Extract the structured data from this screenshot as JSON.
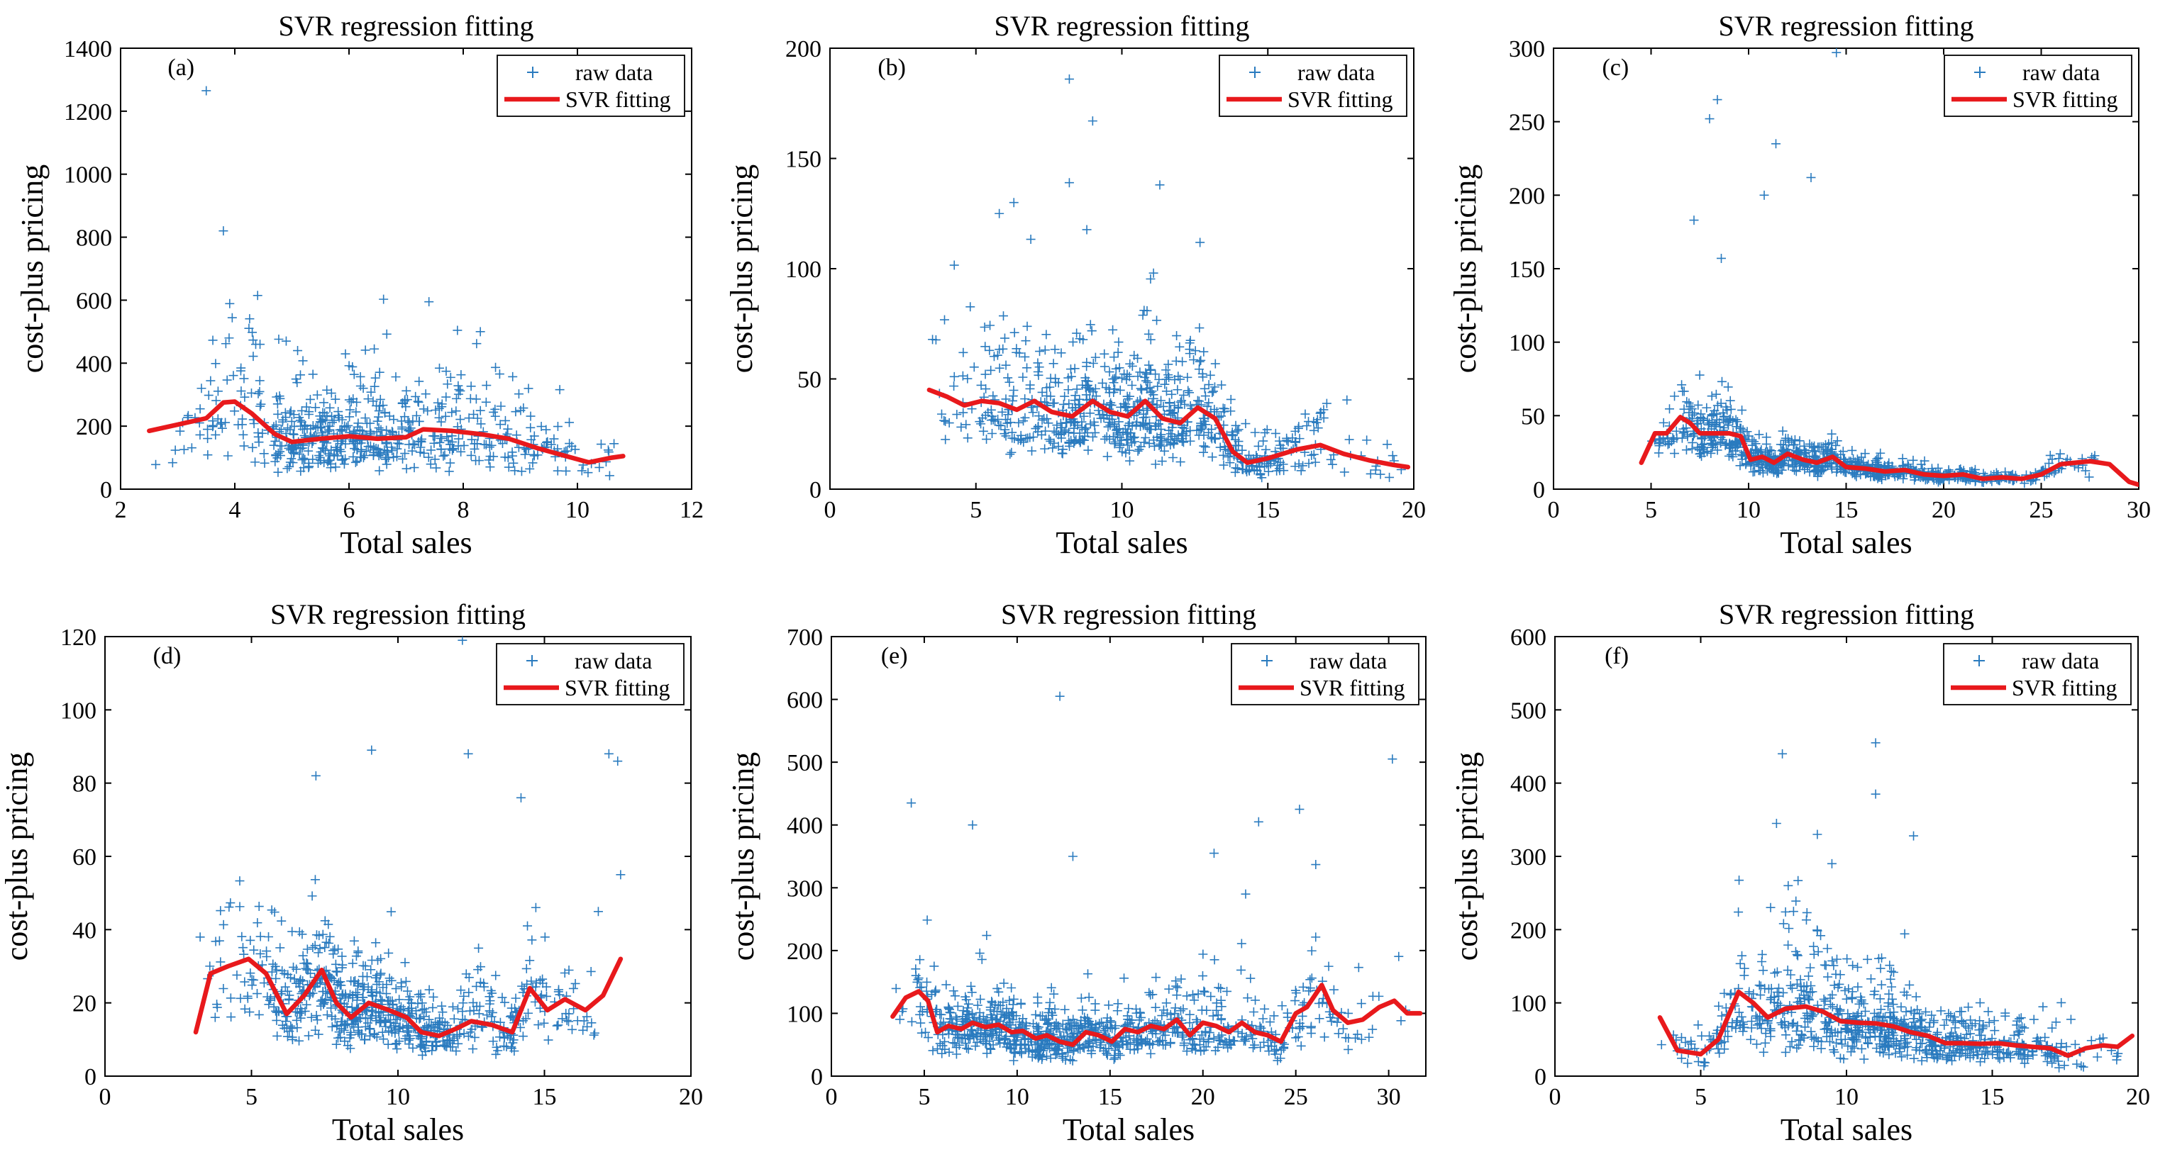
{
  "colors": {
    "raw": "#2a7bbf",
    "fit": "#e8191c",
    "axis": "#000000"
  },
  "chart_data": [
    {
      "tag": "(a)",
      "type": "scatter",
      "title": "SVR regression fitting",
      "xlabel": "Total sales",
      "ylabel": "cost-plus pricing",
      "xlim": [
        2,
        12
      ],
      "ylim": [
        0,
        1400
      ],
      "xticks": [
        2,
        4,
        6,
        8,
        10,
        12
      ],
      "yticks": [
        0,
        200,
        400,
        600,
        800,
        1000,
        1200,
        1400
      ],
      "legend": [
        "raw data",
        "SVR fitting"
      ],
      "scatter": {
        "n": 600,
        "xmin": 2.6,
        "xmax": 10.8,
        "xmode": 5.5,
        "ymult": 1.5,
        "seed": 11,
        "outliers": [
          [
            3.5,
            1265
          ],
          [
            3.8,
            820
          ],
          [
            4.4,
            615
          ],
          [
            7.4,
            595
          ],
          [
            8.3,
            500
          ],
          [
            3.9,
            480
          ],
          [
            4.9,
            470
          ],
          [
            5.1,
            440
          ]
        ]
      },
      "fit": [
        [
          2.5,
          185
        ],
        [
          3.0,
          205
        ],
        [
          3.5,
          225
        ],
        [
          3.8,
          275
        ],
        [
          4.0,
          278
        ],
        [
          4.3,
          240
        ],
        [
          4.7,
          175
        ],
        [
          5.0,
          150
        ],
        [
          5.5,
          160
        ],
        [
          6.0,
          168
        ],
        [
          6.5,
          160
        ],
        [
          7.0,
          165
        ],
        [
          7.3,
          190
        ],
        [
          7.8,
          185
        ],
        [
          8.3,
          175
        ],
        [
          8.8,
          160
        ],
        [
          9.3,
          130
        ],
        [
          9.8,
          105
        ],
        [
          10.2,
          85
        ],
        [
          10.6,
          100
        ],
        [
          10.8,
          105
        ]
      ]
    },
    {
      "tag": "(b)",
      "type": "scatter",
      "title": "SVR regression fitting",
      "xlabel": "Total sales",
      "ylabel": "cost-plus pricing",
      "xlim": [
        0,
        20
      ],
      "ylim": [
        0,
        200
      ],
      "xticks": [
        0,
        5,
        10,
        15,
        20
      ],
      "yticks": [
        0,
        50,
        100,
        150,
        200
      ],
      "legend": [
        "raw data",
        "SVR fitting"
      ],
      "scatter": {
        "n": 750,
        "xmin": 3.3,
        "xmax": 19.8,
        "xmode": 9.5,
        "ymult": 1.3,
        "seed": 23,
        "outliers": [
          [
            8.2,
            186
          ],
          [
            9.0,
            167
          ],
          [
            11.3,
            138
          ],
          [
            8.2,
            139
          ],
          [
            6.3,
            130
          ],
          [
            5.8,
            125
          ]
        ]
      },
      "fit": [
        [
          3.4,
          45
        ],
        [
          4.0,
          42
        ],
        [
          4.6,
          38
        ],
        [
          5.2,
          40
        ],
        [
          5.8,
          39
        ],
        [
          6.4,
          36
        ],
        [
          7.0,
          40
        ],
        [
          7.6,
          35
        ],
        [
          8.3,
          33
        ],
        [
          9.0,
          40
        ],
        [
          9.6,
          35
        ],
        [
          10.2,
          33
        ],
        [
          10.8,
          40
        ],
        [
          11.4,
          32
        ],
        [
          12.0,
          30
        ],
        [
          12.6,
          37
        ],
        [
          13.2,
          32
        ],
        [
          13.8,
          17
        ],
        [
          14.3,
          12
        ],
        [
          15.0,
          14
        ],
        [
          16.0,
          18
        ],
        [
          16.8,
          20
        ],
        [
          17.6,
          16
        ],
        [
          18.5,
          13
        ],
        [
          19.3,
          11
        ],
        [
          19.8,
          10
        ]
      ]
    },
    {
      "tag": "(c)",
      "type": "scatter",
      "title": "SVR regression fitting",
      "xlabel": "Total sales",
      "ylabel": "cost-plus pricing",
      "xlim": [
        0,
        30
      ],
      "ylim": [
        0,
        300
      ],
      "xticks": [
        0,
        5,
        10,
        15,
        20,
        25,
        30
      ],
      "yticks": [
        0,
        50,
        100,
        150,
        200,
        250,
        300
      ],
      "legend": [
        "raw data",
        "SVR fitting"
      ],
      "scatter": {
        "n": 800,
        "xmin": 4.5,
        "xmax": 29.5,
        "xmode": 8.5,
        "ymult": 0.9,
        "seed": 37,
        "outliers": [
          [
            14.5,
            297
          ],
          [
            8.4,
            265
          ],
          [
            8.0,
            252
          ],
          [
            11.4,
            235
          ],
          [
            13.2,
            212
          ],
          [
            10.8,
            200
          ],
          [
            7.2,
            183
          ],
          [
            8.6,
            157
          ]
        ]
      },
      "fit": [
        [
          4.5,
          18
        ],
        [
          5.2,
          38
        ],
        [
          5.8,
          38
        ],
        [
          6.5,
          49
        ],
        [
          7.0,
          45
        ],
        [
          7.5,
          38
        ],
        [
          8.2,
          38
        ],
        [
          9.0,
          38
        ],
        [
          9.6,
          36
        ],
        [
          10.1,
          20
        ],
        [
          10.7,
          22
        ],
        [
          11.3,
          18
        ],
        [
          12.0,
          24
        ],
        [
          12.8,
          20
        ],
        [
          13.5,
          18
        ],
        [
          14.3,
          22
        ],
        [
          15.0,
          15
        ],
        [
          16.0,
          14
        ],
        [
          17.0,
          12
        ],
        [
          18.0,
          13
        ],
        [
          19.0,
          10
        ],
        [
          20.0,
          9
        ],
        [
          21.0,
          10
        ],
        [
          22.0,
          7
        ],
        [
          23.0,
          8
        ],
        [
          24.0,
          7
        ],
        [
          25.0,
          10
        ],
        [
          26.0,
          17
        ],
        [
          27.5,
          19
        ],
        [
          28.5,
          17
        ],
        [
          29.5,
          5
        ],
        [
          30.0,
          3
        ]
      ]
    },
    {
      "tag": "(d)",
      "type": "scatter",
      "title": "SVR regression fitting",
      "xlabel": "Total sales",
      "ylabel": "cost-plus pricing",
      "xlim": [
        0,
        20
      ],
      "ylim": [
        0,
        120
      ],
      "xticks": [
        0,
        5,
        10,
        15,
        20
      ],
      "yticks": [
        0,
        20,
        40,
        60,
        80,
        100,
        120
      ],
      "legend": [
        "raw data",
        "SVR fitting"
      ],
      "scatter": {
        "n": 700,
        "xmin": 3.0,
        "xmax": 17.5,
        "xmode": 8.0,
        "ymult": 1.1,
        "seed": 51,
        "outliers": [
          [
            12.2,
            119
          ],
          [
            9.1,
            89
          ],
          [
            12.4,
            88
          ],
          [
            17.2,
            88
          ],
          [
            17.5,
            86
          ],
          [
            7.2,
            82
          ],
          [
            14.2,
            76
          ],
          [
            17.6,
            55
          ]
        ]
      },
      "fit": [
        [
          3.1,
          12
        ],
        [
          3.6,
          28
        ],
        [
          4.2,
          30
        ],
        [
          4.9,
          32
        ],
        [
          5.5,
          28
        ],
        [
          6.2,
          17
        ],
        [
          6.8,
          22
        ],
        [
          7.4,
          29
        ],
        [
          7.9,
          20
        ],
        [
          8.4,
          16
        ],
        [
          9.0,
          20
        ],
        [
          9.7,
          18
        ],
        [
          10.3,
          16
        ],
        [
          10.8,
          12
        ],
        [
          11.4,
          11
        ],
        [
          12.0,
          13
        ],
        [
          12.5,
          15
        ],
        [
          13.2,
          14
        ],
        [
          13.9,
          12
        ],
        [
          14.5,
          24
        ],
        [
          15.1,
          18
        ],
        [
          15.7,
          21
        ],
        [
          16.4,
          18
        ],
        [
          17.0,
          22
        ],
        [
          17.6,
          32
        ]
      ]
    },
    {
      "tag": "(e)",
      "type": "scatter",
      "title": "SVR regression fitting",
      "xlabel": "Total sales",
      "ylabel": "cost-plus pricing",
      "xlim": [
        0,
        32
      ],
      "ylim": [
        0,
        700
      ],
      "xticks": [
        0,
        5,
        10,
        15,
        20,
        25,
        30
      ],
      "yticks": [
        0,
        100,
        200,
        300,
        400,
        500,
        600,
        700
      ],
      "legend": [
        "raw data",
        "SVR fitting"
      ],
      "scatter": {
        "n": 850,
        "xmin": 3.3,
        "xmax": 31.5,
        "xmode": 8.5,
        "ymult": 1.2,
        "seed": 67,
        "outliers": [
          [
            12.3,
            605
          ],
          [
            30.2,
            505
          ],
          [
            4.3,
            435
          ],
          [
            25.2,
            425
          ],
          [
            7.6,
            400
          ],
          [
            23.0,
            405
          ],
          [
            20.6,
            355
          ],
          [
            13.0,
            350
          ],
          [
            22.3,
            290
          ]
        ]
      },
      "fit": [
        [
          3.3,
          95
        ],
        [
          4.0,
          125
        ],
        [
          4.7,
          135
        ],
        [
          5.2,
          120
        ],
        [
          5.7,
          70
        ],
        [
          6.3,
          80
        ],
        [
          7.0,
          75
        ],
        [
          7.6,
          85
        ],
        [
          8.3,
          78
        ],
        [
          9.0,
          82
        ],
        [
          9.7,
          70
        ],
        [
          10.3,
          72
        ],
        [
          11.0,
          60
        ],
        [
          11.6,
          65
        ],
        [
          12.3,
          55
        ],
        [
          13.0,
          50
        ],
        [
          13.7,
          70
        ],
        [
          14.4,
          65
        ],
        [
          15.1,
          55
        ],
        [
          15.8,
          75
        ],
        [
          16.5,
          70
        ],
        [
          17.2,
          80
        ],
        [
          17.9,
          75
        ],
        [
          18.6,
          90
        ],
        [
          19.3,
          65
        ],
        [
          20.0,
          85
        ],
        [
          20.7,
          80
        ],
        [
          21.4,
          70
        ],
        [
          22.1,
          85
        ],
        [
          22.8,
          70
        ],
        [
          23.5,
          65
        ],
        [
          24.2,
          55
        ],
        [
          25.0,
          100
        ],
        [
          25.6,
          110
        ],
        [
          26.4,
          145
        ],
        [
          27.0,
          105
        ],
        [
          27.8,
          85
        ],
        [
          28.6,
          90
        ],
        [
          29.5,
          110
        ],
        [
          30.3,
          120
        ],
        [
          31.0,
          100
        ],
        [
          31.7,
          100
        ]
      ]
    },
    {
      "tag": "(f)",
      "type": "scatter",
      "title": "SVR regression fitting",
      "xlabel": "Total sales",
      "ylabel": "cost-plus pricing",
      "xlim": [
        0,
        20
      ],
      "ylim": [
        0,
        600
      ],
      "xticks": [
        0,
        5,
        10,
        15,
        20
      ],
      "yticks": [
        0,
        100,
        200,
        300,
        400,
        500,
        600
      ],
      "legend": [
        "raw data",
        "SVR fitting"
      ],
      "scatter": {
        "n": 750,
        "xmin": 3.5,
        "xmax": 19.8,
        "xmode": 10.5,
        "ymult": 1.4,
        "seed": 83,
        "outliers": [
          [
            11.0,
            455
          ],
          [
            7.8,
            440
          ],
          [
            11.0,
            385
          ],
          [
            9.0,
            330
          ],
          [
            12.3,
            328
          ],
          [
            9.5,
            290
          ],
          [
            8.0,
            260
          ],
          [
            7.6,
            345
          ]
        ]
      },
      "fit": [
        [
          3.6,
          80
        ],
        [
          4.2,
          35
        ],
        [
          5.0,
          30
        ],
        [
          5.6,
          50
        ],
        [
          6.3,
          115
        ],
        [
          6.8,
          100
        ],
        [
          7.3,
          80
        ],
        [
          7.9,
          92
        ],
        [
          8.6,
          95
        ],
        [
          9.2,
          88
        ],
        [
          9.8,
          75
        ],
        [
          10.4,
          73
        ],
        [
          11.0,
          72
        ],
        [
          11.6,
          68
        ],
        [
          12.2,
          60
        ],
        [
          12.8,
          55
        ],
        [
          13.4,
          45
        ],
        [
          14.0,
          45
        ],
        [
          14.6,
          44
        ],
        [
          15.2,
          45
        ],
        [
          15.8,
          42
        ],
        [
          16.4,
          40
        ],
        [
          17.0,
          38
        ],
        [
          17.6,
          28
        ],
        [
          18.2,
          38
        ],
        [
          18.8,
          42
        ],
        [
          19.3,
          40
        ],
        [
          19.8,
          55
        ]
      ]
    }
  ]
}
